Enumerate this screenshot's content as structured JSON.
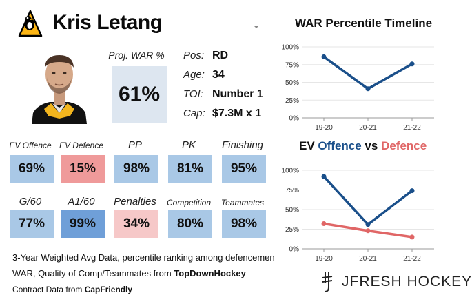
{
  "header": {
    "player_name": "Kris Letang",
    "team_logo_icon": "penguins-logo-icon",
    "dropdown_icon": "chevron-down-icon"
  },
  "projection": {
    "label": "Proj. WAR %",
    "value": "61%",
    "value_num": 61
  },
  "bio": [
    {
      "label": "Pos:",
      "value": "RD"
    },
    {
      "label": "Age:",
      "value": "34"
    },
    {
      "label": "TOI:",
      "value": "Number 1"
    },
    {
      "label": "Cap:",
      "value": "$7.3M x 1"
    }
  ],
  "metrics": [
    {
      "label": "EV Offence",
      "value": "69%",
      "pct": 69,
      "color": "#a9c8e6"
    },
    {
      "label": "EV Defence",
      "value": "15%",
      "pct": 15,
      "color": "#ef9a9a"
    },
    {
      "label": "PP",
      "value": "98%",
      "pct": 98,
      "color": "#a9c8e6"
    },
    {
      "label": "PK",
      "value": "81%",
      "pct": 81,
      "color": "#a9c8e6"
    },
    {
      "label": "Finishing",
      "value": "95%",
      "pct": 95,
      "color": "#a9c8e6"
    },
    {
      "label": "G/60",
      "value": "77%",
      "pct": 77,
      "color": "#a9c8e6"
    },
    {
      "label": "A1/60",
      "value": "99%",
      "pct": 99,
      "color": "#6f9fd8"
    },
    {
      "label": "Penalties",
      "value": "34%",
      "pct": 34,
      "color": "#f6c8c8"
    },
    {
      "label": "Competition",
      "value": "80%",
      "pct": 80,
      "color": "#a9c8e6"
    },
    {
      "label": "Teammates",
      "value": "98%",
      "pct": 98,
      "color": "#a9c8e6"
    }
  ],
  "notes": {
    "line1": "3-Year Weighted Avg Data, percentile ranking among defencemen",
    "line2_prefix": "WAR, Quality of Comp/Teammates from ",
    "line2_source": "TopDownHockey",
    "line3_prefix": "Contract Data from ",
    "line3_source": "CapFriendly"
  },
  "brand": {
    "text": "JFRESH HOCKEY",
    "logo_icon": "jfresh-logo-icon"
  },
  "colors": {
    "blue": "#1a4f8a",
    "red": "#e06666",
    "axis": "#999999",
    "grid": "#e6e6e6"
  },
  "chart_data": [
    {
      "type": "line",
      "title": "WAR Percentile Timeline",
      "categories": [
        "19-20",
        "20-21",
        "21-22"
      ],
      "series": [
        {
          "name": "WAR",
          "values": [
            86,
            41,
            76
          ],
          "color": "#1a4f8a"
        }
      ],
      "ylim": [
        0,
        100
      ],
      "yticks": [
        "0%",
        "25%",
        "50%",
        "75%",
        "100%"
      ],
      "xlabel": "",
      "ylabel": ""
    },
    {
      "type": "line",
      "title_parts": [
        "EV ",
        "Offence",
        " vs ",
        "Defence"
      ],
      "categories": [
        "19-20",
        "20-21",
        "21-22"
      ],
      "series": [
        {
          "name": "Offence",
          "values": [
            92,
            31,
            74
          ],
          "color": "#1a4f8a"
        },
        {
          "name": "Defence",
          "values": [
            32,
            23,
            15
          ],
          "color": "#e06666"
        }
      ],
      "ylim": [
        0,
        100
      ],
      "yticks": [
        "0%",
        "25%",
        "50%",
        "75%",
        "100%"
      ],
      "xlabel": "",
      "ylabel": ""
    }
  ]
}
